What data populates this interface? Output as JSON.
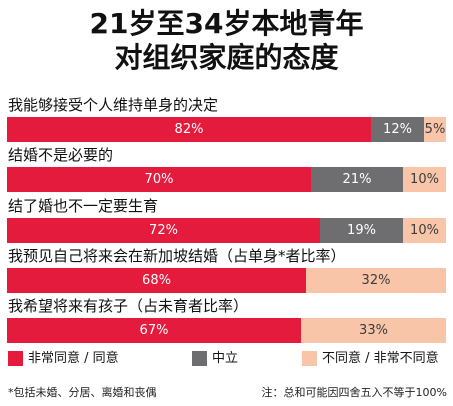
{
  "chart_data": {
    "type": "bar",
    "orientation": "horizontal",
    "stacked": true,
    "title": [
      "21岁至34岁本地青年",
      "对组织家庭的态度"
    ],
    "categories": [
      "我能够接受个人维持单身的决定",
      "结婚不是必要的",
      "结了婚也不一定要生育",
      "我预见自己将来会在新加坡结婚（占单身*者比率）",
      "我希望将来有孩子（占未育者比率）"
    ],
    "unit": "%",
    "series": [
      {
        "name": "非常同意 / 同意",
        "color": "#e41b3d",
        "label_color": "#ffffff",
        "values": [
          82,
          70,
          72,
          68,
          67
        ]
      },
      {
        "name": "中立",
        "color": "#6e6e70",
        "label_color": "#ffffff",
        "values": [
          12,
          21,
          19,
          null,
          null
        ]
      },
      {
        "name": "不同意 / 非常不同意",
        "color": "#f8c5a8",
        "label_color": "#3c3c3c",
        "values": [
          5,
          10,
          10,
          32,
          33
        ]
      }
    ],
    "legend": "bottom",
    "grid": false,
    "annotations": [
      "*包括未婚、分居、离婚和丧偶",
      "注：总和可能因四舍五入不等于100%"
    ]
  }
}
